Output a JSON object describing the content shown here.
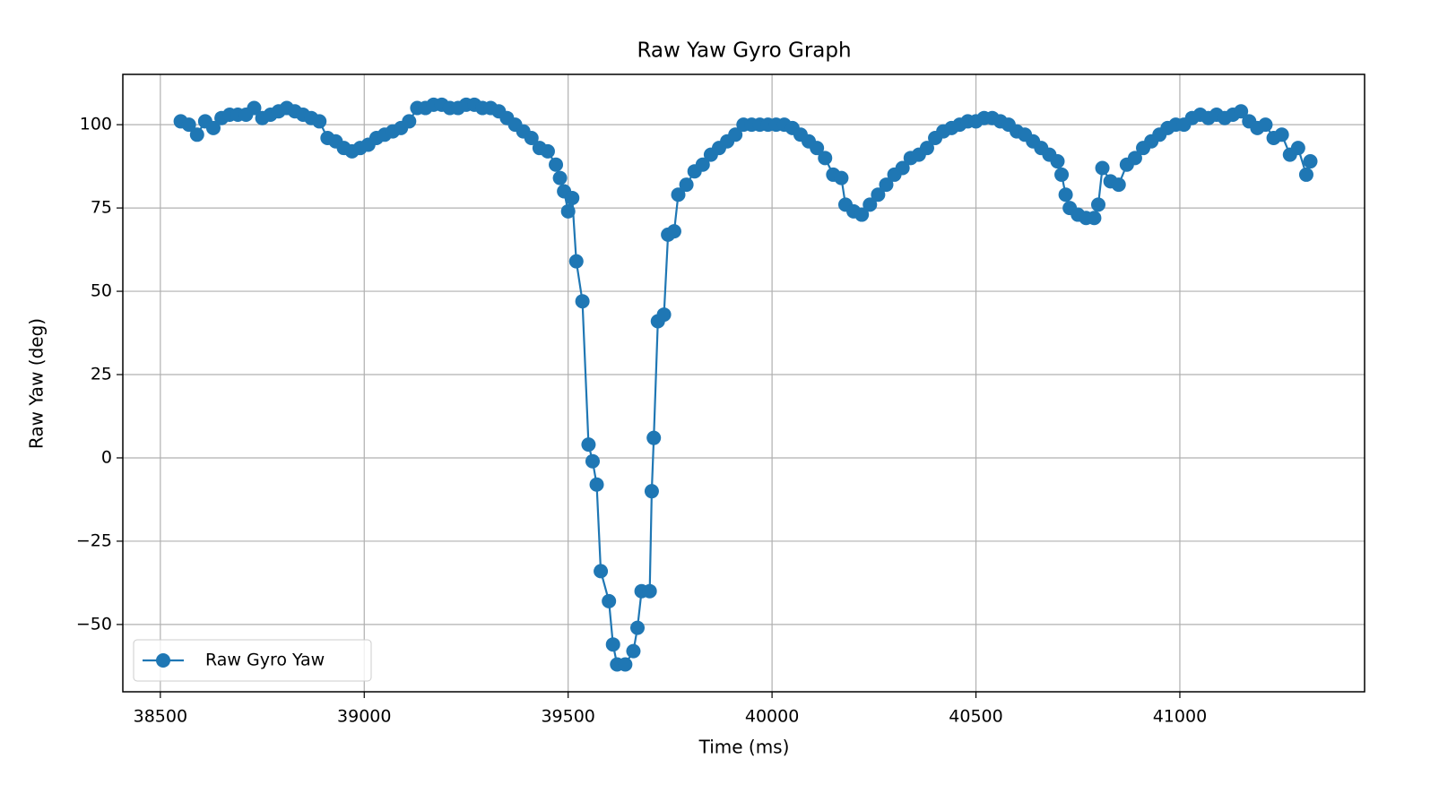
{
  "chart_data": {
    "type": "line",
    "title": "Raw Yaw Gyro Graph",
    "x_label": "Time (ms)",
    "y_label": "Raw Yaw (deg)",
    "xlim": [
      38408,
      41453
    ],
    "ylim": [
      -70.2,
      115.1
    ],
    "xticks": [
      38500,
      39000,
      39500,
      40000,
      40500,
      41000
    ],
    "yticks": [
      {
        "value": -50,
        "label": "−50"
      },
      {
        "value": -25,
        "label": "−25"
      },
      0,
      25,
      50,
      75,
      100
    ],
    "grid": true,
    "legend": "lower left",
    "series": [
      {
        "name": "Raw Gyro Yaw",
        "color": "#1f77b4",
        "x": [
          38550,
          38570,
          38590,
          38610,
          38630,
          38650,
          38670,
          38690,
          38710,
          38730,
          38750,
          38770,
          38790,
          38810,
          38830,
          38850,
          38870,
          38890,
          38910,
          38930,
          38950,
          38970,
          38990,
          39010,
          39030,
          39050,
          39070,
          39090,
          39110,
          39130,
          39150,
          39170,
          39190,
          39210,
          39230,
          39250,
          39270,
          39290,
          39310,
          39330,
          39350,
          39370,
          39390,
          39410,
          39430,
          39450,
          39470,
          39480,
          39490,
          39500,
          39510,
          39520,
          39535,
          39550,
          39560,
          39570,
          39580,
          39600,
          39610,
          39620,
          39640,
          39660,
          39670,
          39680,
          39700,
          39705,
          39710,
          39720,
          39735,
          39745,
          39760,
          39770,
          39790,
          39810,
          39830,
          39850,
          39870,
          39890,
          39910,
          39930,
          39950,
          39970,
          39990,
          40010,
          40030,
          40050,
          40070,
          40090,
          40110,
          40130,
          40150,
          40170,
          40180,
          40200,
          40220,
          40240,
          40260,
          40280,
          40300,
          40320,
          40340,
          40360,
          40380,
          40400,
          40420,
          40440,
          40460,
          40480,
          40500,
          40520,
          40540,
          40560,
          40580,
          40600,
          40620,
          40640,
          40660,
          40680,
          40700,
          40710,
          40720,
          40730,
          40750,
          40770,
          40790,
          40800,
          40810,
          40830,
          40850,
          40870,
          40890,
          40910,
          40930,
          40950,
          40970,
          40990,
          41010,
          41030,
          41050,
          41070,
          41090,
          41110,
          41130,
          41150,
          41170,
          41190,
          41210,
          41230,
          41250,
          41270,
          41290,
          41310,
          41320
        ],
        "values": [
          101,
          100,
          97,
          101,
          99,
          102,
          103,
          103,
          103,
          105,
          102,
          103,
          104,
          105,
          104,
          103,
          102,
          101,
          96,
          95,
          93,
          92,
          93,
          94,
          96,
          97,
          98,
          99,
          101,
          105,
          105,
          106,
          106,
          105,
          105,
          106,
          106,
          105,
          105,
          104,
          102,
          100,
          98,
          96,
          93,
          92,
          88,
          84,
          80,
          74,
          78,
          59,
          47,
          4,
          -1,
          -8,
          -34,
          -43,
          -56,
          -62,
          -62,
          -58,
          -51,
          -40,
          -40,
          -10,
          6,
          41,
          43,
          67,
          68,
          79,
          82,
          86,
          88,
          91,
          93,
          95,
          97,
          100,
          100,
          100,
          100,
          100,
          100,
          99,
          97,
          95,
          93,
          90,
          85,
          84,
          76,
          74,
          73,
          76,
          79,
          82,
          85,
          87,
          90,
          91,
          93,
          96,
          98,
          99,
          100,
          101,
          101,
          102,
          102,
          101,
          100,
          98,
          97,
          95,
          93,
          91,
          89,
          85,
          79,
          75,
          73,
          72,
          72,
          76,
          87,
          83,
          82,
          88,
          90,
          93,
          95,
          97,
          99,
          100,
          100,
          102,
          103,
          102,
          103,
          102,
          103,
          104,
          101,
          99,
          100,
          96,
          97,
          91,
          93,
          85,
          89
        ]
      }
    ]
  }
}
